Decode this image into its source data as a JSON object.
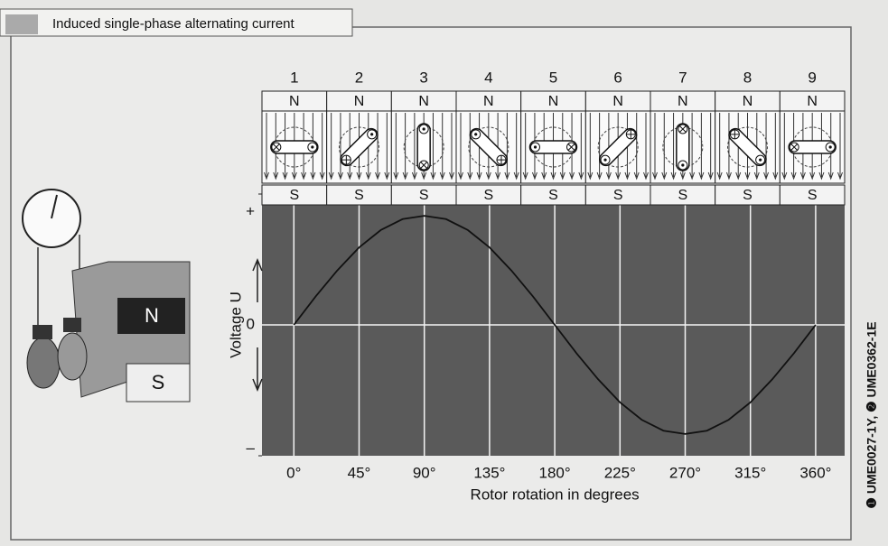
{
  "header": "Induced single-phase alternating current",
  "side_note": "❶ UME0027-1Y, ❷ UME0362-1E",
  "illustration": {
    "north": "N",
    "south": "S"
  },
  "rotor_positions": [
    {
      "number": "1",
      "north": "N",
      "south": "S"
    },
    {
      "number": "2",
      "north": "N",
      "south": "S"
    },
    {
      "number": "3",
      "north": "N",
      "south": "S"
    },
    {
      "number": "4",
      "north": "N",
      "south": "S"
    },
    {
      "number": "5",
      "north": "N",
      "south": "S"
    },
    {
      "number": "6",
      "north": "N",
      "south": "S"
    },
    {
      "number": "7",
      "north": "N",
      "south": "S"
    },
    {
      "number": "8",
      "north": "N",
      "south": "S"
    },
    {
      "number": "9",
      "north": "N",
      "south": "S"
    }
  ],
  "chart_data": {
    "type": "line",
    "x_label": "Rotor rotation in degrees",
    "y_label": "Voltage U",
    "x": [
      0,
      15,
      30,
      45,
      60,
      75,
      90,
      105,
      120,
      135,
      150,
      165,
      180,
      195,
      210,
      225,
      240,
      255,
      270,
      285,
      300,
      315,
      330,
      345,
      360
    ],
    "values": [
      0,
      0.26,
      0.5,
      0.71,
      0.87,
      0.97,
      1,
      0.97,
      0.87,
      0.71,
      0.5,
      0.26,
      0,
      -0.26,
      -0.5,
      -0.71,
      -0.87,
      -0.97,
      -1,
      -0.97,
      -0.87,
      -0.71,
      -0.5,
      -0.26,
      0
    ],
    "color": "#111111",
    "xlim": [
      -22,
      380
    ],
    "ylim": [
      -1.2,
      1.2
    ],
    "xticks": [
      {
        "value": 0,
        "label": "0°"
      },
      {
        "value": 45,
        "label": "45°"
      },
      {
        "value": 90,
        "label": "90°"
      },
      {
        "value": 135,
        "label": "135°"
      },
      {
        "value": 180,
        "label": "180°"
      },
      {
        "value": 225,
        "label": "225°"
      },
      {
        "value": 270,
        "label": "270°"
      },
      {
        "value": 315,
        "label": "315°"
      },
      {
        "value": 360,
        "label": "360°"
      }
    ],
    "yticks": [
      {
        "value": -1.2,
        "label": "–"
      },
      0,
      {
        "value": 1.2,
        "label": "+"
      }
    ],
    "grid": true
  }
}
